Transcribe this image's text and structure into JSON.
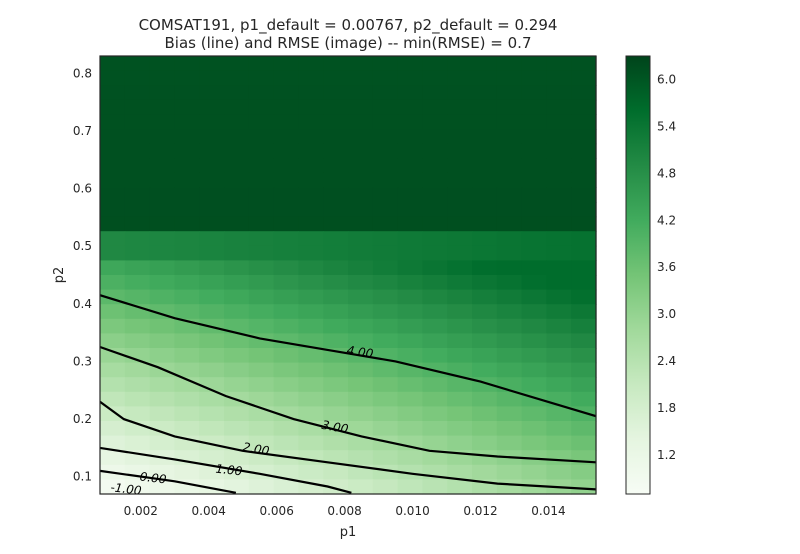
{
  "chart_data": {
    "type": "heatmap",
    "title": "COMSAT191, p1_default = 0.00767, p2_default = 0.294",
    "subtitle": "Bias (line) and RMSE (image) -- min(RMSE) = 0.7",
    "xlabel": "p1",
    "ylabel": "p2",
    "xlim": [
      0.0008,
      0.0154
    ],
    "ylim": [
      0.07,
      0.83
    ],
    "xticks": [
      "0.002",
      "0.004",
      "0.006",
      "0.008",
      "0.010",
      "0.012",
      "0.014"
    ],
    "xtick_values": [
      0.002,
      0.004,
      0.006,
      0.008,
      0.01,
      0.012,
      0.014
    ],
    "yticks": [
      "0.1",
      "0.2",
      "0.3",
      "0.4",
      "0.5",
      "0.6",
      "0.7",
      "0.8"
    ],
    "ytick_values": [
      0.1,
      0.2,
      0.3,
      0.4,
      0.5,
      0.6,
      0.7,
      0.8
    ],
    "grid": {
      "nx": 20,
      "ny": 30
    },
    "colormap": "Greens",
    "colorbar": {
      "range": [
        0.7,
        6.3
      ],
      "ticks": [
        "1.2",
        "1.8",
        "2.4",
        "3.0",
        "3.6",
        "4.2",
        "4.8",
        "5.4",
        "6.0"
      ],
      "tick_values": [
        1.2,
        1.8,
        2.4,
        3.0,
        3.6,
        4.2,
        4.8,
        5.4,
        6.0
      ]
    },
    "contours": [
      {
        "label": "4.00",
        "level": 4.0,
        "points": [
          [
            0.0008,
            0.415
          ],
          [
            0.003,
            0.375
          ],
          [
            0.0055,
            0.34
          ],
          [
            0.0075,
            0.32
          ],
          [
            0.0095,
            0.3
          ],
          [
            0.012,
            0.265
          ],
          [
            0.0154,
            0.205
          ]
        ]
      },
      {
        "label": "3.00",
        "level": 3.0,
        "points": [
          [
            0.0008,
            0.325
          ],
          [
            0.0025,
            0.29
          ],
          [
            0.0045,
            0.24
          ],
          [
            0.0065,
            0.2
          ],
          [
            0.0085,
            0.17
          ],
          [
            0.0105,
            0.145
          ],
          [
            0.0125,
            0.135
          ],
          [
            0.0154,
            0.125
          ]
        ]
      },
      {
        "label": "2.00",
        "level": 2.0,
        "points": [
          [
            0.0008,
            0.23
          ],
          [
            0.0015,
            0.2
          ],
          [
            0.003,
            0.17
          ],
          [
            0.005,
            0.145
          ],
          [
            0.0075,
            0.125
          ],
          [
            0.01,
            0.105
          ],
          [
            0.0125,
            0.088
          ],
          [
            0.0154,
            0.078
          ]
        ]
      },
      {
        "label": "1.00",
        "level": 1.0,
        "points": [
          [
            0.0008,
            0.15
          ],
          [
            0.003,
            0.13
          ],
          [
            0.0055,
            0.105
          ],
          [
            0.0075,
            0.083
          ],
          [
            0.0082,
            0.072
          ]
        ]
      },
      {
        "label": "0.00",
        "level": 0.0,
        "points": [
          [
            0.0008,
            0.11
          ],
          [
            0.003,
            0.092
          ],
          [
            0.0048,
            0.072
          ]
        ]
      },
      {
        "label": "-1.00",
        "level": -1.0,
        "points": []
      }
    ]
  }
}
